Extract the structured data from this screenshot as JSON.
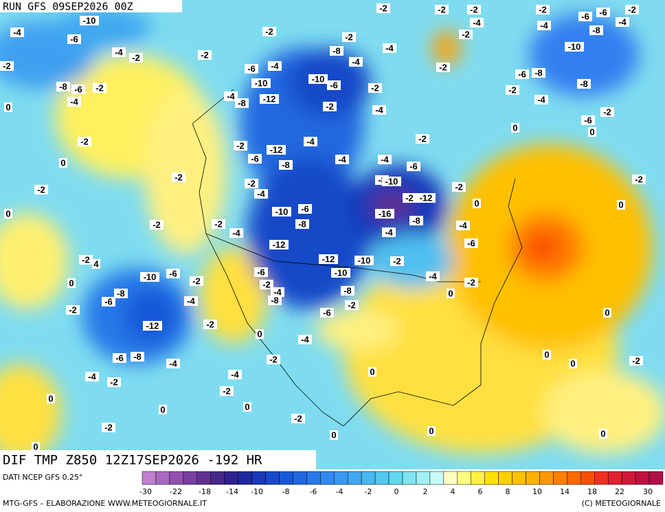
{
  "header": {
    "title": "RUN GFS 09SEP2026 00Z"
  },
  "map": {
    "contour_labels": [
      "-10",
      "-6",
      "-4",
      "-4",
      "-2",
      "-2",
      "-8",
      "-6",
      "-4",
      "-2",
      "0",
      "-2",
      "-2",
      "-2",
      "-2",
      "-2",
      "-2",
      "-6",
      "-6",
      "-2",
      "-4",
      "-4",
      "-4",
      "-8",
      "-2",
      "-10",
      "-2",
      "-8",
      "-4",
      "-4",
      "-6",
      "-4",
      "-10",
      "-10",
      "-6",
      "-2",
      "-2",
      "-6",
      "-8",
      "-2",
      "-8",
      "-4",
      "-4",
      "-8",
      "-12",
      "-2",
      "-4",
      "-6",
      "-2",
      "0",
      "0",
      "-2",
      "0",
      "-2",
      "-12",
      "-4",
      "-2",
      "-6",
      "-8",
      "-4",
      "-4",
      "-6",
      "-2",
      "-2",
      "-2",
      "-4",
      "-8",
      "-10",
      "-2",
      "-2",
      "0",
      "-10",
      "-6",
      "-12",
      "-2",
      "0",
      "0",
      "-16",
      "-8",
      "-2",
      "-2",
      "-4",
      "-8",
      "-4",
      "-4",
      "-6",
      "-12",
      "-12",
      "-10",
      "-2",
      "-2",
      "4",
      "0",
      "-10",
      "-6",
      "-2",
      "-6",
      "-2",
      "-10",
      "-4",
      "-2",
      "-8",
      "-6",
      "-4",
      "-4",
      "-8",
      "-8",
      "0",
      "-2",
      "-2",
      "-6",
      "0",
      "-12",
      "-2",
      "0",
      "-4",
      "-6",
      "-8",
      "-4",
      "-2",
      "0",
      "0",
      "-2",
      "-4",
      "-2",
      "-4",
      "0",
      "0",
      "-2",
      "0",
      "0",
      "-2",
      "-2",
      "0",
      "0",
      "0",
      "0"
    ]
  },
  "footer": {
    "product": "DIF TMP Z850 12Z17SEP2026 -192 HR",
    "source": "DATI NCEP GFS 0.25°",
    "credit_left": "MTG-GFS – ELABORAZIONE WWW.METEOGIORNALE.IT",
    "credit_right": "(C) METEOGIORNALE"
  },
  "legend": {
    "labels": [
      "-30",
      "-22",
      "-18",
      "-14",
      "-10",
      "-8",
      "-6",
      "-4",
      "-2",
      "0",
      "2",
      "4",
      "6",
      "8",
      "10",
      "14",
      "18",
      "22",
      "30"
    ],
    "colors": [
      "#c080d0",
      "#a868c0",
      "#9050b0",
      "#7840a0",
      "#603090",
      "#482888",
      "#302090",
      "#2028a0",
      "#1838b8",
      "#1848c8",
      "#1858d8",
      "#2068e0",
      "#2878e8",
      "#3088f0",
      "#3898f0",
      "#40a8f0",
      "#48b8f0",
      "#50c8f0",
      "#60d8f0",
      "#80e4f0",
      "#a0f0f4",
      "#c8f8f8",
      "#ffffc0",
      "#ffff80",
      "#fff040",
      "#ffe000",
      "#ffd000",
      "#ffc000",
      "#ffb000",
      "#ff9800",
      "#ff8000",
      "#ff6800",
      "#f85000",
      "#f03020",
      "#e02030",
      "#d01838",
      "#c01040",
      "#b01048"
    ]
  }
}
